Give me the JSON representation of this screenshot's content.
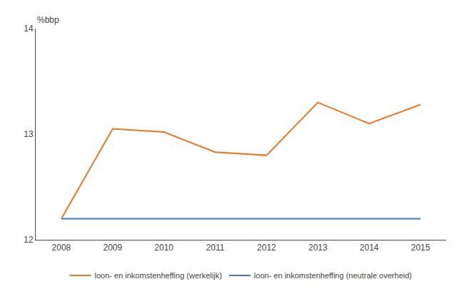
{
  "chart_data": {
    "type": "line",
    "ylabel": "%bbp",
    "x": [
      2008,
      2009,
      2010,
      2011,
      2012,
      2013,
      2014,
      2015
    ],
    "series": [
      {
        "name": "loon- en inkomstenheffing (werkelijk)",
        "color": "#E87722",
        "values": [
          12.2,
          13.05,
          13.02,
          12.83,
          12.8,
          13.3,
          13.1,
          13.28
        ]
      },
      {
        "name": "loon- en inkomstenheffing (neutrale overheid)",
        "color": "#4472C4",
        "values": [
          12.2,
          12.2,
          12.2,
          12.2,
          12.2,
          12.2,
          12.2,
          12.2
        ]
      }
    ],
    "xlim": [
      2007.5,
      2015.5
    ],
    "xticks": [
      2008,
      2009,
      2010,
      2011,
      2012,
      2013,
      2014,
      2015
    ],
    "ylim": [
      12,
      14
    ],
    "yticks": [
      12,
      13,
      14
    ],
    "grid": false,
    "legend": "bottom"
  }
}
